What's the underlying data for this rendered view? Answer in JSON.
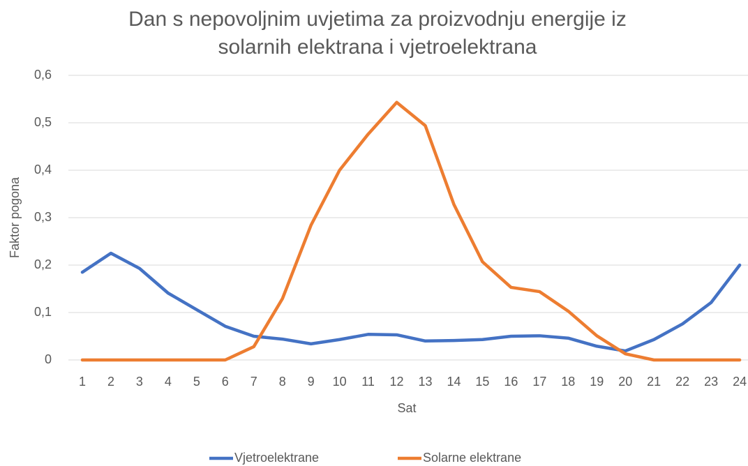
{
  "chart_data": {
    "type": "line",
    "title": "Dan s nepovoljnim uvjetima za proizvodnju energije iz solarnih elektrana i vjetroelektrana",
    "x_label": "Sat",
    "y_label": "Faktor pogona",
    "categories": [
      "1",
      "2",
      "3",
      "4",
      "5",
      "6",
      "7",
      "8",
      "9",
      "10",
      "11",
      "12",
      "13",
      "14",
      "15",
      "16",
      "17",
      "18",
      "19",
      "20",
      "21",
      "22",
      "23",
      "24"
    ],
    "series": [
      {
        "name": "Vjetroelektrane",
        "color": "#4472c4",
        "values": [
          0.185,
          0.225,
          0.193,
          0.141,
          0.106,
          0.071,
          0.05,
          0.044,
          0.034,
          0.043,
          0.054,
          0.053,
          0.04,
          0.041,
          0.043,
          0.05,
          0.051,
          0.046,
          0.029,
          0.019,
          0.043,
          0.076,
          0.121,
          0.2
        ]
      },
      {
        "name": "Solarne elektrane",
        "color": "#ed7d31",
        "values": [
          0,
          0,
          0,
          0,
          0,
          0,
          0.028,
          0.129,
          0.284,
          0.4,
          0.476,
          0.543,
          0.494,
          0.328,
          0.207,
          0.153,
          0.144,
          0.103,
          0.051,
          0.013,
          0,
          0,
          0,
          0
        ]
      }
    ],
    "ylim": [
      0,
      0.6
    ],
    "yticks": [
      0,
      {
        "value": 0.1,
        "label": "0,1"
      },
      {
        "value": 0.2,
        "label": "0,2"
      },
      {
        "value": 0.3,
        "label": "0,3"
      },
      {
        "value": 0.4,
        "label": "0,4"
      },
      {
        "value": 0.5,
        "label": "0,5"
      },
      {
        "value": 0.6,
        "label": "0,6"
      }
    ],
    "grid": true,
    "legend": "bottom"
  }
}
